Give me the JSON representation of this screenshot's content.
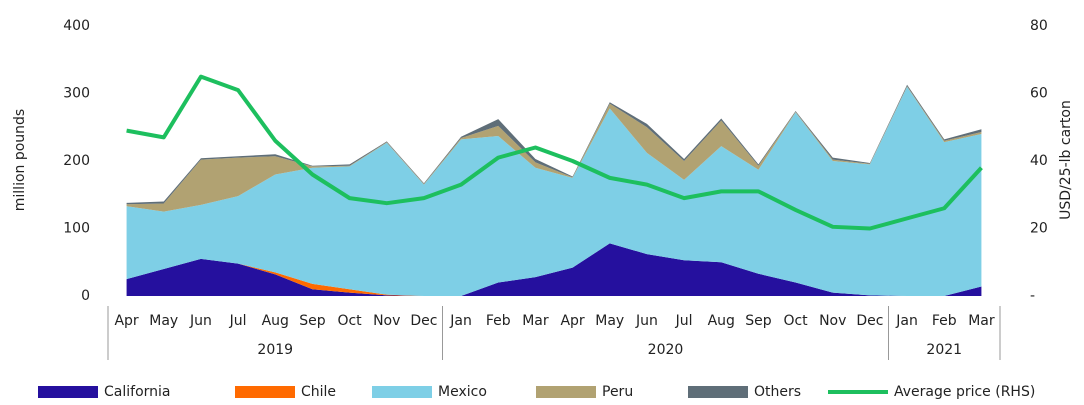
{
  "chart_data": {
    "type": "stacked-area-line",
    "categories": [
      "Apr",
      "May",
      "Jun",
      "Jul",
      "Aug",
      "Sep",
      "Oct",
      "Nov",
      "Dec",
      "Jan",
      "Feb",
      "Mar",
      "Apr",
      "May",
      "Jun",
      "Jul",
      "Aug",
      "Sep",
      "Oct",
      "Nov",
      "Dec",
      "Jan",
      "Feb",
      "Mar"
    ],
    "groups": [
      {
        "label": "2019",
        "size": 9
      },
      {
        "label": "2020",
        "size": 12
      },
      {
        "label": "2021",
        "size": 3
      }
    ],
    "ylabel": "million pounds",
    "y2label": "USD/25-lb carton",
    "ylim": [
      0,
      400
    ],
    "yticks": [
      0,
      100,
      200,
      300,
      400
    ],
    "y2lim": [
      0,
      80
    ],
    "y2ticks": [
      {
        "value": 0,
        "label": "-"
      },
      20,
      40,
      60,
      80
    ],
    "series": [
      {
        "name": "California",
        "color": "#25109e",
        "values": [
          25,
          40,
          55,
          48,
          32,
          10,
          5,
          1,
          0,
          0,
          20,
          28,
          42,
          78,
          62,
          53,
          50,
          33,
          20,
          5,
          1,
          0,
          0,
          14
        ]
      },
      {
        "name": "Chile",
        "color": "#ff6a00",
        "values": [
          0,
          0,
          0,
          0,
          3,
          8,
          5,
          1,
          0,
          0,
          0,
          0,
          0,
          0,
          0,
          0,
          0,
          0,
          0,
          0,
          0,
          0,
          0,
          0
        ]
      },
      {
        "name": "Mexico",
        "color": "#7ecfe6",
        "values": [
          108,
          85,
          80,
          100,
          145,
          172,
          182,
          225,
          165,
          232,
          217,
          162,
          133,
          200,
          150,
          119,
          172,
          154,
          252,
          195,
          194,
          310,
          228,
          226
        ]
      },
      {
        "name": "Peru",
        "color": "#b1a272",
        "values": [
          3,
          12,
          67,
          57,
          27,
          2,
          1,
          1,
          1,
          2,
          15,
          8,
          1,
          7,
          38,
          28,
          38,
          6,
          1,
          2,
          1,
          1,
          2,
          3
        ]
      },
      {
        "name": "Others",
        "color": "#5f6e78",
        "values": [
          2,
          3,
          2,
          2,
          3,
          1,
          2,
          1,
          1,
          2,
          10,
          5,
          1,
          2,
          5,
          3,
          3,
          2,
          1,
          3,
          1,
          2,
          2,
          4
        ]
      },
      {
        "name": "Average price (RHS)",
        "color": "#1dbf5e",
        "axis": "y2",
        "values": [
          49,
          47,
          65,
          61,
          46,
          36,
          29,
          27.5,
          29,
          33,
          41,
          44,
          40,
          35,
          33,
          29,
          31,
          31,
          25.5,
          20.5,
          20,
          23,
          26,
          38
        ]
      }
    ]
  }
}
